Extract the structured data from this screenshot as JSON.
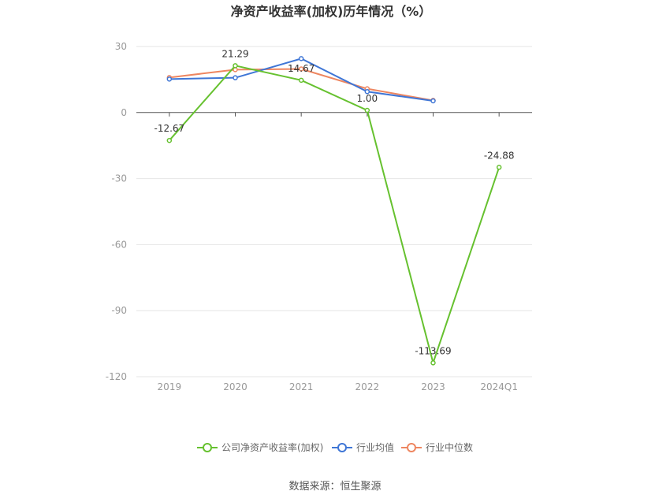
{
  "chart_data": {
    "type": "line",
    "title": "净资产收益率(加权)历年情况（%）",
    "categories": [
      "2019",
      "2020",
      "2021",
      "2022",
      "2023",
      "2024Q1"
    ],
    "ylim": [
      -120,
      30
    ],
    "yticks": [
      "30",
      "0",
      "-30",
      "-60",
      "-90",
      "-120"
    ],
    "grid": true,
    "legend_position": "bottom",
    "series": [
      {
        "name": "公司净资产收益率(加权)",
        "color": "#66c12f",
        "values": [
          -12.67,
          21.29,
          14.67,
          1.0,
          -113.69,
          -24.88
        ],
        "labels": [
          "-12.67",
          "21.29",
          "14.67",
          "1.00",
          "-113.69",
          "-24.88"
        ]
      },
      {
        "name": "行业均值",
        "color": "#3f76d6",
        "values": [
          15.2,
          15.8,
          24.5,
          9.5,
          5.3,
          null
        ]
      },
      {
        "name": "行业中位数",
        "color": "#ee8660",
        "values": [
          15.9,
          19.5,
          19.8,
          10.8,
          5.5,
          null
        ]
      }
    ]
  },
  "source": "数据来源：恒生聚源"
}
